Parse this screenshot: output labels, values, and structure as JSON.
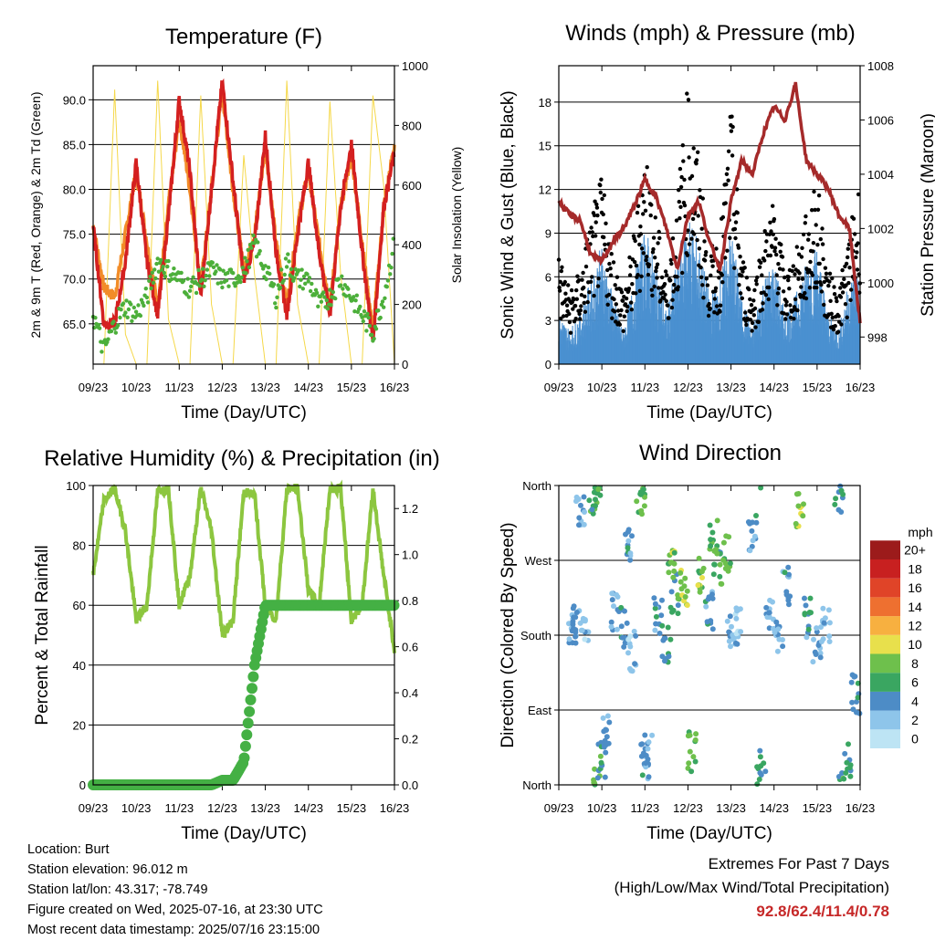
{
  "x_ticks": [
    "09/23",
    "10/23",
    "11/23",
    "12/23",
    "13/23",
    "14/23",
    "15/23",
    "16/23"
  ],
  "x_label": "Time (Day/UTC)",
  "footer": {
    "location": "Location: Burt",
    "elevation": "Station elevation: 96.012 m",
    "latlon": "Station lat/lon: 43.317; -78.749",
    "created": "Figure created on Wed, 2025-07-16, at 23:30 UTC",
    "recent": "Most recent data timestamp: 2025/07/16 23:15:00"
  },
  "extremes": {
    "title": "Extremes For Past 7 Days",
    "subtitle": "(High/Low/Max Wind/Total Precipitation)",
    "values": "92.8/62.4/11.4/0.78",
    "color": "#c62828"
  },
  "chart_data": [
    {
      "id": "temperature",
      "type": "line",
      "title": "Temperature (F)",
      "ylabel": "2m & 9m T (Red, Orange) & 2m Td (Green)",
      "ylabel_right": "Solar Insolation (Yellow)",
      "ylim": [
        60.5,
        93.8
      ],
      "ylim_right": [
        0,
        1000
      ],
      "yticks": [
        "65.0",
        "70.0",
        "75.0",
        "80.0",
        "85.0",
        "90.0"
      ],
      "yticks_right": [
        "0",
        "200",
        "400",
        "600",
        "800",
        "1000"
      ],
      "x_days": [
        0,
        0.25,
        0.5,
        0.75,
        1,
        1.25,
        1.5,
        1.75,
        2,
        2.25,
        2.5,
        2.75,
        3,
        3.25,
        3.5,
        3.75,
        4,
        4.25,
        4.5,
        4.75,
        5,
        5.25,
        5.5,
        5.75,
        6,
        6.25,
        6.5,
        6.75,
        7
      ],
      "series": [
        {
          "color": "#f28c28",
          "values": [
            76,
            69,
            68,
            75,
            82,
            74,
            67,
            78,
            88,
            80,
            69,
            80,
            91,
            80,
            71,
            75,
            85,
            74,
            67,
            76,
            82,
            74,
            67,
            78,
            84,
            74,
            64,
            78,
            85
          ]
        },
        {
          "color": "#d42020",
          "values": [
            76,
            65,
            65,
            72,
            83,
            72,
            66,
            77,
            90,
            82,
            68,
            80,
            92,
            81,
            70,
            74,
            86,
            73,
            66,
            75,
            83,
            73,
            66,
            78,
            85,
            73,
            63,
            78,
            84
          ]
        },
        {
          "color": "#4caf3a",
          "values": [
            66,
            62,
            65,
            67,
            66,
            68,
            72,
            71,
            70,
            69,
            70,
            71,
            70,
            70,
            71,
            74,
            71,
            68,
            72,
            70,
            70,
            67,
            68,
            70,
            68,
            66,
            64,
            68,
            74
          ]
        },
        {
          "color": "#f5d84a",
          "values": [
            0,
            0,
            920,
            100,
            0,
            0,
            950,
            150,
            0,
            0,
            900,
            200,
            0,
            0,
            700,
            300,
            0,
            0,
            950,
            200,
            0,
            0,
            880,
            300,
            0,
            0,
            900,
            600,
            0
          ]
        }
      ]
    },
    {
      "id": "winds",
      "type": "scatter",
      "title": "Winds (mph) & Pressure (mb)",
      "ylabel": "Sonic Wind & Gust (Blue, Black)",
      "ylabel_right": "Station Pressure (Maroon)",
      "ylim": [
        0,
        20.5
      ],
      "ylim_right": [
        997,
        1008
      ],
      "yticks": [
        "0",
        "3",
        "6",
        "9",
        "12",
        "15",
        "18"
      ],
      "yticks_right": [
        "998",
        "1000",
        "1002",
        "1004",
        "1006",
        "1008"
      ],
      "x_days": [
        0,
        0.25,
        0.5,
        0.75,
        1,
        1.25,
        1.5,
        1.75,
        2,
        2.25,
        2.5,
        2.75,
        3,
        3.25,
        3.5,
        3.75,
        4,
        4.25,
        4.5,
        4.75,
        5,
        5.25,
        5.5,
        5.75,
        6,
        6.25,
        6.5,
        6.75,
        7
      ],
      "series": [
        {
          "name": "Gust",
          "color": "#000000",
          "values": [
            6,
            4,
            5,
            8,
            10,
            6,
            4,
            7,
            12,
            8,
            5,
            9,
            15,
            11,
            6,
            7,
            14,
            6,
            4,
            7,
            9,
            5,
            6,
            8,
            10,
            5,
            4,
            7,
            10
          ]
        },
        {
          "name": "Wind",
          "color": "#4a90d0",
          "values": [
            3,
            2,
            3,
            5,
            7,
            4,
            2,
            5,
            8,
            6,
            3,
            6,
            9,
            7,
            4,
            5,
            8,
            4,
            2,
            5,
            6,
            3,
            4,
            6,
            7,
            3,
            2,
            5,
            6
          ]
        },
        {
          "name": "Pressure",
          "color": "#a52a2a",
          "values": [
            1003.0,
            1002.5,
            1002.3,
            1001.0,
            1000.8,
            1001.5,
            1002.0,
            1002.8,
            1003.8,
            1003.2,
            1002.0,
            1000.5,
            1002.5,
            1003.0,
            1001.5,
            1000.5,
            1003.0,
            1004.5,
            1004.0,
            1005.5,
            1006.5,
            1006.0,
            1007.3,
            1004.5,
            1004.0,
            1003.5,
            1002.5,
            1002.0,
            998.5
          ]
        }
      ]
    },
    {
      "id": "humidity",
      "type": "line",
      "title": "Relative Humidity (%) & Precipitation (in)",
      "ylabel": "Percent & Total Rainfall",
      "ylim": [
        0,
        100
      ],
      "ylim_right": [
        0,
        1.3
      ],
      "yticks": [
        "0",
        "20",
        "40",
        "60",
        "80",
        "100"
      ],
      "yticks_right": [
        "0.0",
        "0.2",
        "0.4",
        "0.6",
        "0.8",
        "1.0",
        "1.2"
      ],
      "x_days": [
        0,
        0.25,
        0.5,
        0.75,
        1,
        1.25,
        1.5,
        1.75,
        2,
        2.25,
        2.5,
        2.75,
        3,
        3.25,
        3.5,
        3.75,
        4,
        4.25,
        4.5,
        4.75,
        5,
        5.25,
        5.5,
        5.75,
        6,
        6.25,
        6.5,
        6.75,
        7
      ],
      "series": [
        {
          "name": "RH",
          "color": "#8cc63f",
          "values": [
            70,
            95,
            99,
            85,
            55,
            60,
            98,
            99,
            60,
            70,
            99,
            85,
            50,
            55,
            98,
            97,
            60,
            55,
            99,
            99,
            65,
            60,
            99,
            99,
            55,
            60,
            99,
            70,
            45
          ]
        },
        {
          "name": "Precip",
          "color": "#44b044",
          "values": [
            0,
            0,
            0,
            0,
            0,
            0,
            0,
            0,
            0,
            0,
            0,
            0,
            0.02,
            0.02,
            0.1,
            0.52,
            0.78,
            0.78,
            0.78,
            0.78,
            0.78,
            0.78,
            0.78,
            0.78,
            0.78,
            0.78,
            0.78,
            0.78,
            0.78
          ]
        }
      ]
    },
    {
      "id": "direction",
      "type": "scatter",
      "title": "Wind Direction",
      "ylabel": "Direction (Colored By Speed)",
      "yticks": [
        "North",
        "East",
        "South",
        "West",
        "North"
      ],
      "colorbar_unit": "mph",
      "colorbar_labels": [
        "0",
        "2",
        "4",
        "6",
        "8",
        "10",
        "12",
        "14",
        "16",
        "18",
        "20+"
      ],
      "colorbar_colors": [
        "#bde4f4",
        "#8ec5ea",
        "#4d8cc6",
        "#3aa661",
        "#6ec04c",
        "#e8e04c",
        "#f7b040",
        "#ee7030",
        "#e04428",
        "#c82020",
        "#9c1b1b"
      ],
      "points": [
        [
          0.3,
          190,
          3
        ],
        [
          0.4,
          200,
          4
        ],
        [
          0.6,
          180,
          2
        ],
        [
          0.8,
          350,
          6
        ],
        [
          0.9,
          10,
          7
        ],
        [
          1.0,
          30,
          5
        ],
        [
          1.1,
          60,
          4
        ],
        [
          1.3,
          210,
          3
        ],
        [
          1.5,
          190,
          4
        ],
        [
          1.7,
          160,
          2
        ],
        [
          1.9,
          340,
          7
        ],
        [
          2.0,
          30,
          4
        ],
        [
          2.1,
          45,
          3
        ],
        [
          2.3,
          200,
          4
        ],
        [
          2.5,
          170,
          5
        ],
        [
          2.7,
          230,
          6
        ],
        [
          2.9,
          240,
          9
        ],
        [
          3.1,
          40,
          7
        ],
        [
          3.3,
          250,
          8
        ],
        [
          3.5,
          210,
          4
        ],
        [
          3.7,
          260,
          6
        ],
        [
          3.9,
          280,
          7
        ],
        [
          4.0,
          190,
          3
        ],
        [
          4.2,
          190,
          2
        ],
        [
          4.5,
          300,
          4
        ],
        [
          4.7,
          20,
          5
        ],
        [
          4.9,
          200,
          3
        ],
        [
          5.1,
          180,
          3
        ],
        [
          5.3,
          240,
          4
        ],
        [
          5.6,
          330,
          9
        ],
        [
          5.8,
          200,
          4
        ],
        [
          6.0,
          170,
          3
        ],
        [
          6.2,
          190,
          2
        ],
        [
          6.5,
          350,
          5
        ],
        [
          6.7,
          30,
          6
        ],
        [
          6.9,
          110,
          4
        ],
        [
          0.5,
          330,
          3
        ],
        [
          1.6,
          290,
          4
        ],
        [
          2.6,
          260,
          8
        ],
        [
          3.6,
          300,
          7
        ]
      ]
    }
  ]
}
